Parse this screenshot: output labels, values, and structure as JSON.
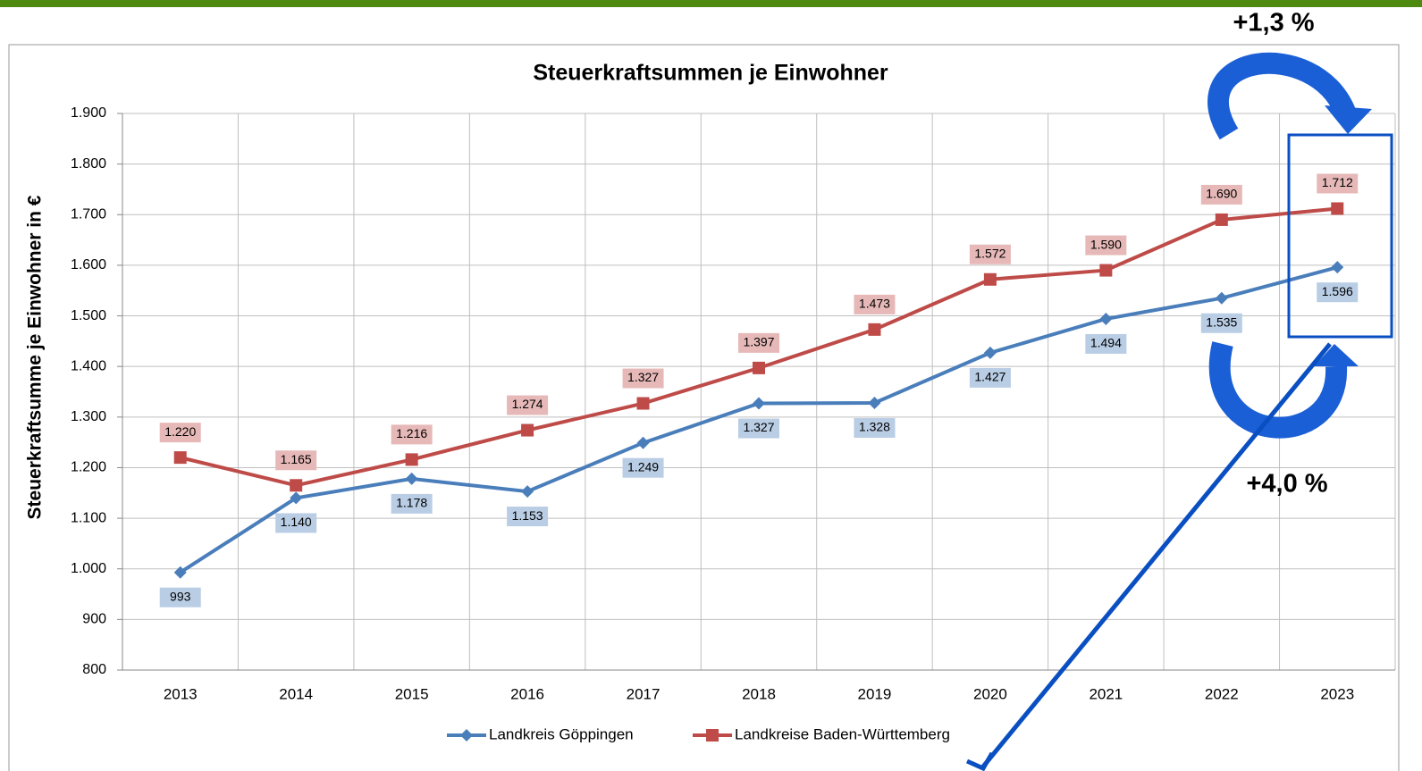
{
  "chart_data": {
    "type": "line",
    "title": "Steuerkraftsummen  je Einwohner",
    "y_label": "Steuerkraftsumme je Einwohner in €",
    "categories": [
      "2013",
      "2014",
      "2015",
      "2016",
      "2017",
      "2018",
      "2019",
      "2020",
      "2021",
      "2022",
      "2023"
    ],
    "series": [
      {
        "name": "Landkreis  Göppingen",
        "color": "#4a7ebb",
        "label_color": "#b9cde5",
        "marker": "diamond",
        "values": [
          993,
          1140,
          1178,
          1153,
          1249,
          1327,
          1328,
          1427,
          1494,
          1535,
          1596
        ],
        "value_labels": [
          "993",
          "1.140",
          "1.178",
          "1.153",
          "1.249",
          "1.327",
          "1.328",
          "1.427",
          "1.494",
          "1.535",
          "1.596"
        ]
      },
      {
        "name": "Landkreise Baden-Württemberg",
        "color": "#be4b48",
        "label_color": "#e6b9b8",
        "marker": "square",
        "values": [
          1220,
          1165,
          1216,
          1274,
          1327,
          1397,
          1473,
          1572,
          1590,
          1690,
          1712
        ],
        "value_labels": [
          "1.220",
          "1.165",
          "1.216",
          "1.274",
          "1.327",
          "1.397",
          "1.473",
          "1.572",
          "1.590",
          "1.690",
          "1.712"
        ]
      }
    ],
    "ylim": [
      800,
      1900
    ],
    "yticks": [
      800,
      900,
      {
        "value": 1000,
        "label": "1.000"
      },
      {
        "value": 1100,
        "label": "1.100"
      },
      {
        "value": 1200,
        "label": "1.200"
      },
      {
        "value": 1300,
        "label": "1.300"
      },
      {
        "value": 1400,
        "label": "1.400"
      },
      {
        "value": 1500,
        "label": "1.500"
      },
      {
        "value": 1600,
        "label": "1.600"
      },
      {
        "value": 1700,
        "label": "1.700"
      },
      {
        "value": 1800,
        "label": "1.800"
      },
      {
        "value": 1900,
        "label": "1.900"
      }
    ],
    "grid": true,
    "annotations": [
      "+1,3 %",
      "+4,0 %"
    ]
  }
}
